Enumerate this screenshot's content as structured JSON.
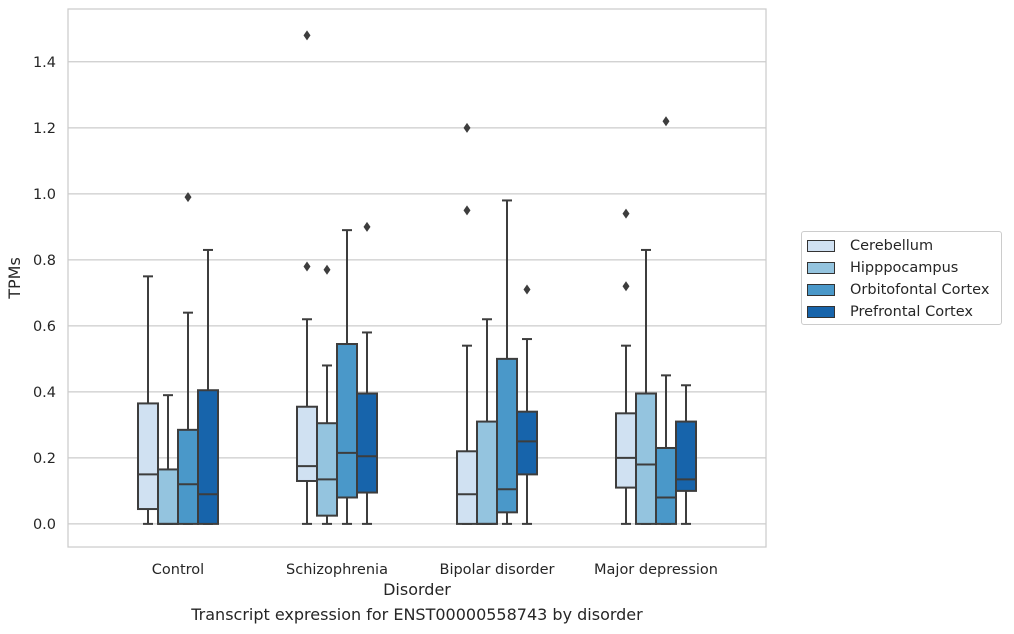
{
  "caption": "Transcript expression for ENST00000558743 by disorder",
  "chart_data": {
    "type": "boxplot",
    "xlabel": "Disorder",
    "ylabel": "TPMs",
    "ylim": [
      -0.07,
      1.56
    ],
    "yticks": [
      "0.0",
      "0.2",
      "0.4",
      "0.6",
      "0.8",
      "1.0",
      "1.2",
      "1.4"
    ],
    "grid": "horizontal",
    "legend_position": "right",
    "categories": [
      "Control",
      "Schizophrenia",
      "Bipolar disorder",
      "Major depression"
    ],
    "series": [
      {
        "name": "Cerebellum",
        "color": "#d0e1f2",
        "boxes": [
          {
            "whislo": 0.0,
            "q1": 0.045,
            "med": 0.15,
            "q3": 0.365,
            "whishi": 0.75,
            "fliers": []
          },
          {
            "whislo": 0.0,
            "q1": 0.13,
            "med": 0.175,
            "q3": 0.355,
            "whishi": 0.62,
            "fliers": [
              1.48,
              0.78
            ]
          },
          {
            "whislo": 0.0,
            "q1": 0.0,
            "med": 0.09,
            "q3": 0.22,
            "whishi": 0.54,
            "fliers": [
              1.2,
              0.95
            ]
          },
          {
            "whislo": 0.0,
            "q1": 0.11,
            "med": 0.2,
            "q3": 0.335,
            "whishi": 0.54,
            "fliers": [
              0.94,
              0.72
            ]
          }
        ]
      },
      {
        "name": "Hipppocampus",
        "color": "#94c4df",
        "boxes": [
          {
            "whislo": 0.0,
            "q1": 0.0,
            "med": 0.0,
            "q3": 0.165,
            "whishi": 0.39,
            "fliers": []
          },
          {
            "whislo": 0.0,
            "q1": 0.025,
            "med": 0.135,
            "q3": 0.305,
            "whishi": 0.48,
            "fliers": [
              0.77
            ]
          },
          {
            "whislo": 0.0,
            "q1": 0.0,
            "med": 0.0,
            "q3": 0.31,
            "whishi": 0.62,
            "fliers": []
          },
          {
            "whislo": 0.0,
            "q1": 0.0,
            "med": 0.18,
            "q3": 0.395,
            "whishi": 0.83,
            "fliers": []
          }
        ]
      },
      {
        "name": "Orbitofontal Cortex",
        "color": "#4a98c9",
        "boxes": [
          {
            "whislo": 0.0,
            "q1": 0.0,
            "med": 0.12,
            "q3": 0.285,
            "whishi": 0.64,
            "fliers": [
              0.99
            ]
          },
          {
            "whislo": 0.0,
            "q1": 0.08,
            "med": 0.215,
            "q3": 0.545,
            "whishi": 0.89,
            "fliers": []
          },
          {
            "whislo": 0.0,
            "q1": 0.035,
            "med": 0.105,
            "q3": 0.5,
            "whishi": 0.98,
            "fliers": []
          },
          {
            "whislo": 0.0,
            "q1": 0.0,
            "med": 0.08,
            "q3": 0.23,
            "whishi": 0.45,
            "fliers": [
              1.22
            ]
          }
        ]
      },
      {
        "name": "Prefrontal Cortex",
        "color": "#1764ab",
        "boxes": [
          {
            "whislo": 0.0,
            "q1": 0.0,
            "med": 0.09,
            "q3": 0.405,
            "whishi": 0.83,
            "fliers": []
          },
          {
            "whislo": 0.0,
            "q1": 0.095,
            "med": 0.205,
            "q3": 0.395,
            "whishi": 0.58,
            "fliers": [
              0.9
            ]
          },
          {
            "whislo": 0.0,
            "q1": 0.15,
            "med": 0.25,
            "q3": 0.34,
            "whishi": 0.56,
            "fliers": [
              0.71
            ]
          },
          {
            "whislo": 0.0,
            "q1": 0.1,
            "med": 0.135,
            "q3": 0.31,
            "whishi": 0.42,
            "fliers": []
          }
        ]
      }
    ]
  }
}
